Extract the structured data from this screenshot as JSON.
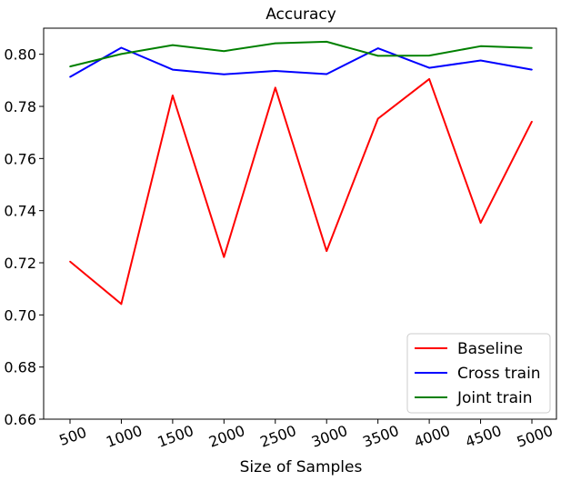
{
  "chart_data": {
    "type": "line",
    "title": "Accuracy",
    "xlabel": "Size of Samples",
    "ylabel": "",
    "categories": [
      "500",
      "1000",
      "1500",
      "2000",
      "2500",
      "3000",
      "3500",
      "4000",
      "4500",
      "5000"
    ],
    "ylim": [
      0.66,
      0.81
    ],
    "yticks": [
      "0.66",
      "0.68",
      "0.70",
      "0.72",
      "0.74",
      "0.76",
      "0.78",
      "0.80"
    ],
    "grid": false,
    "legend_position": "lower-right",
    "series": [
      {
        "name": "Baseline",
        "color": "#ff0000",
        "values": [
          0.7205,
          0.7042,
          0.7842,
          0.7222,
          0.7872,
          0.7245,
          0.7753,
          0.7905,
          0.7353,
          0.7742
        ]
      },
      {
        "name": "Cross train",
        "color": "#0000ff",
        "values": [
          0.7913,
          0.8025,
          0.7941,
          0.7923,
          0.7936,
          0.7924,
          0.8023,
          0.7948,
          0.7976,
          0.7941
        ]
      },
      {
        "name": "Joint train",
        "color": "#008000",
        "values": [
          0.7953,
          0.8001,
          0.8035,
          0.8012,
          0.8042,
          0.8048,
          0.7994,
          0.7995,
          0.8031,
          0.8024
        ]
      }
    ]
  }
}
